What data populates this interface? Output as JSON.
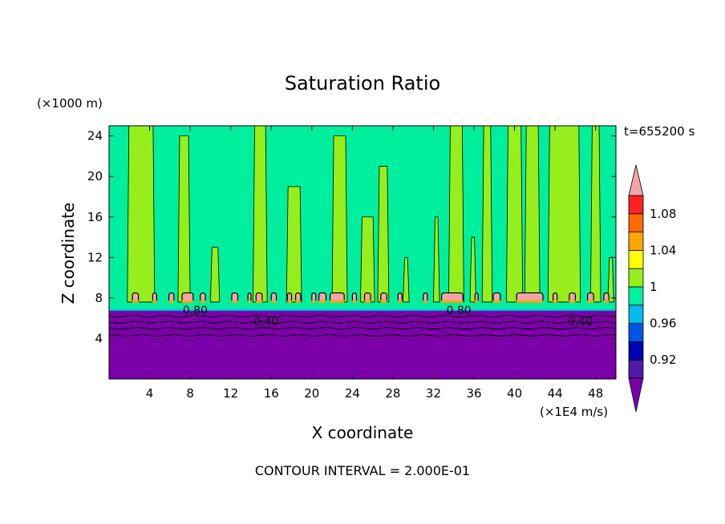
{
  "chart_data": {
    "type": "heatmap",
    "title": "Saturation Ratio",
    "xlabel": "X coordinate",
    "ylabel": "Z coordinate",
    "x_unit": "(×1E4 m/s)",
    "y_unit": "(×1000 m)",
    "time_label": "t=655200 s",
    "footer": "CONTOUR INTERVAL = 2.000E-01",
    "xlim": [
      0,
      50
    ],
    "ylim": [
      0,
      25
    ],
    "x_ticks": [
      4,
      8,
      12,
      16,
      20,
      24,
      28,
      32,
      36,
      40,
      44,
      48
    ],
    "y_ticks": [
      4,
      8,
      12,
      16,
      20,
      24
    ],
    "colorbar": {
      "levels": [
        0.9,
        0.92,
        0.94,
        0.96,
        0.98,
        1.0,
        1.02,
        1.04,
        1.06,
        1.08,
        1.1
      ],
      "tick_labels": [
        "0.92",
        "0.96",
        "1",
        "1.04",
        "1.08"
      ],
      "tick_values": [
        0.92,
        0.96,
        1.0,
        1.04,
        1.08
      ],
      "colors": [
        "#4d1aa8",
        "#0000b4",
        "#0055e6",
        "#00bbee",
        "#00ef9e",
        "#96ee1c",
        "#ffff00",
        "#ffa500",
        "#ff6a00",
        "#ff2020"
      ],
      "under_color": "#7c00aa",
      "over_color": "#f2a5a5"
    },
    "field": {
      "dry_color": "#7c00aa",
      "moist_color": "#00ef9e",
      "supersat_color": "#96ee1c",
      "cloud_color": "#f2a5a5",
      "dry_layer_top": 6.8,
      "cloud_base": 7.6,
      "cloud_top": 8.5,
      "contour_levels_below": [
        6.2,
        5.6,
        5.0,
        4.3
      ],
      "contour_labels": [
        {
          "text": "0.80",
          "x": 8.5,
          "y": 6.8
        },
        {
          "text": "0.40",
          "x": 15.5,
          "y": 5.7
        },
        {
          "text": "0.80",
          "x": 34.5,
          "y": 6.8
        },
        {
          "text": "0.40",
          "x": 46.5,
          "y": 5.7
        }
      ],
      "supersat_columns": [
        [
          1.8,
          4.5,
          25
        ],
        [
          6.8,
          8.0,
          24
        ],
        [
          10.0,
          10.9,
          13
        ],
        [
          14.2,
          15.6,
          25
        ],
        [
          17.5,
          19.0,
          19
        ],
        [
          22.0,
          23.5,
          24
        ],
        [
          24.8,
          26.2,
          16
        ],
        [
          26.5,
          27.6,
          21
        ],
        [
          29.0,
          29.6,
          12
        ],
        [
          32.0,
          32.6,
          16
        ],
        [
          33.5,
          35.0,
          25
        ],
        [
          35.6,
          36.2,
          14
        ],
        [
          36.8,
          37.8,
          25
        ],
        [
          39.2,
          40.8,
          25
        ],
        [
          41.0,
          42.5,
          25
        ],
        [
          43.3,
          46.5,
          25
        ],
        [
          47.5,
          48.5,
          25
        ],
        [
          49.2,
          49.8,
          12
        ]
      ],
      "cloud_cells": [
        [
          2.3,
          2.9
        ],
        [
          4.3,
          4.7
        ],
        [
          5.9,
          6.4
        ],
        [
          7.2,
          8.3
        ],
        [
          9.0,
          9.5
        ],
        [
          12.1,
          12.7
        ],
        [
          13.7,
          14.0
        ],
        [
          14.5,
          15.1
        ],
        [
          16.0,
          16.5
        ],
        [
          17.6,
          18.0
        ],
        [
          18.4,
          18.9
        ],
        [
          20.0,
          20.4
        ],
        [
          20.7,
          21.4
        ],
        [
          21.8,
          23.2
        ],
        [
          24.0,
          24.4
        ],
        [
          25.2,
          25.8
        ],
        [
          26.8,
          27.4
        ],
        [
          28.5,
          28.9
        ],
        [
          31.0,
          31.4
        ],
        [
          32.8,
          34.9
        ],
        [
          36.1,
          36.4
        ],
        [
          37.9,
          38.6
        ],
        [
          40.2,
          42.8
        ],
        [
          43.8,
          44.2
        ],
        [
          45.4,
          46.0
        ],
        [
          47.2,
          47.8
        ],
        [
          48.8,
          49.3
        ]
      ]
    }
  }
}
